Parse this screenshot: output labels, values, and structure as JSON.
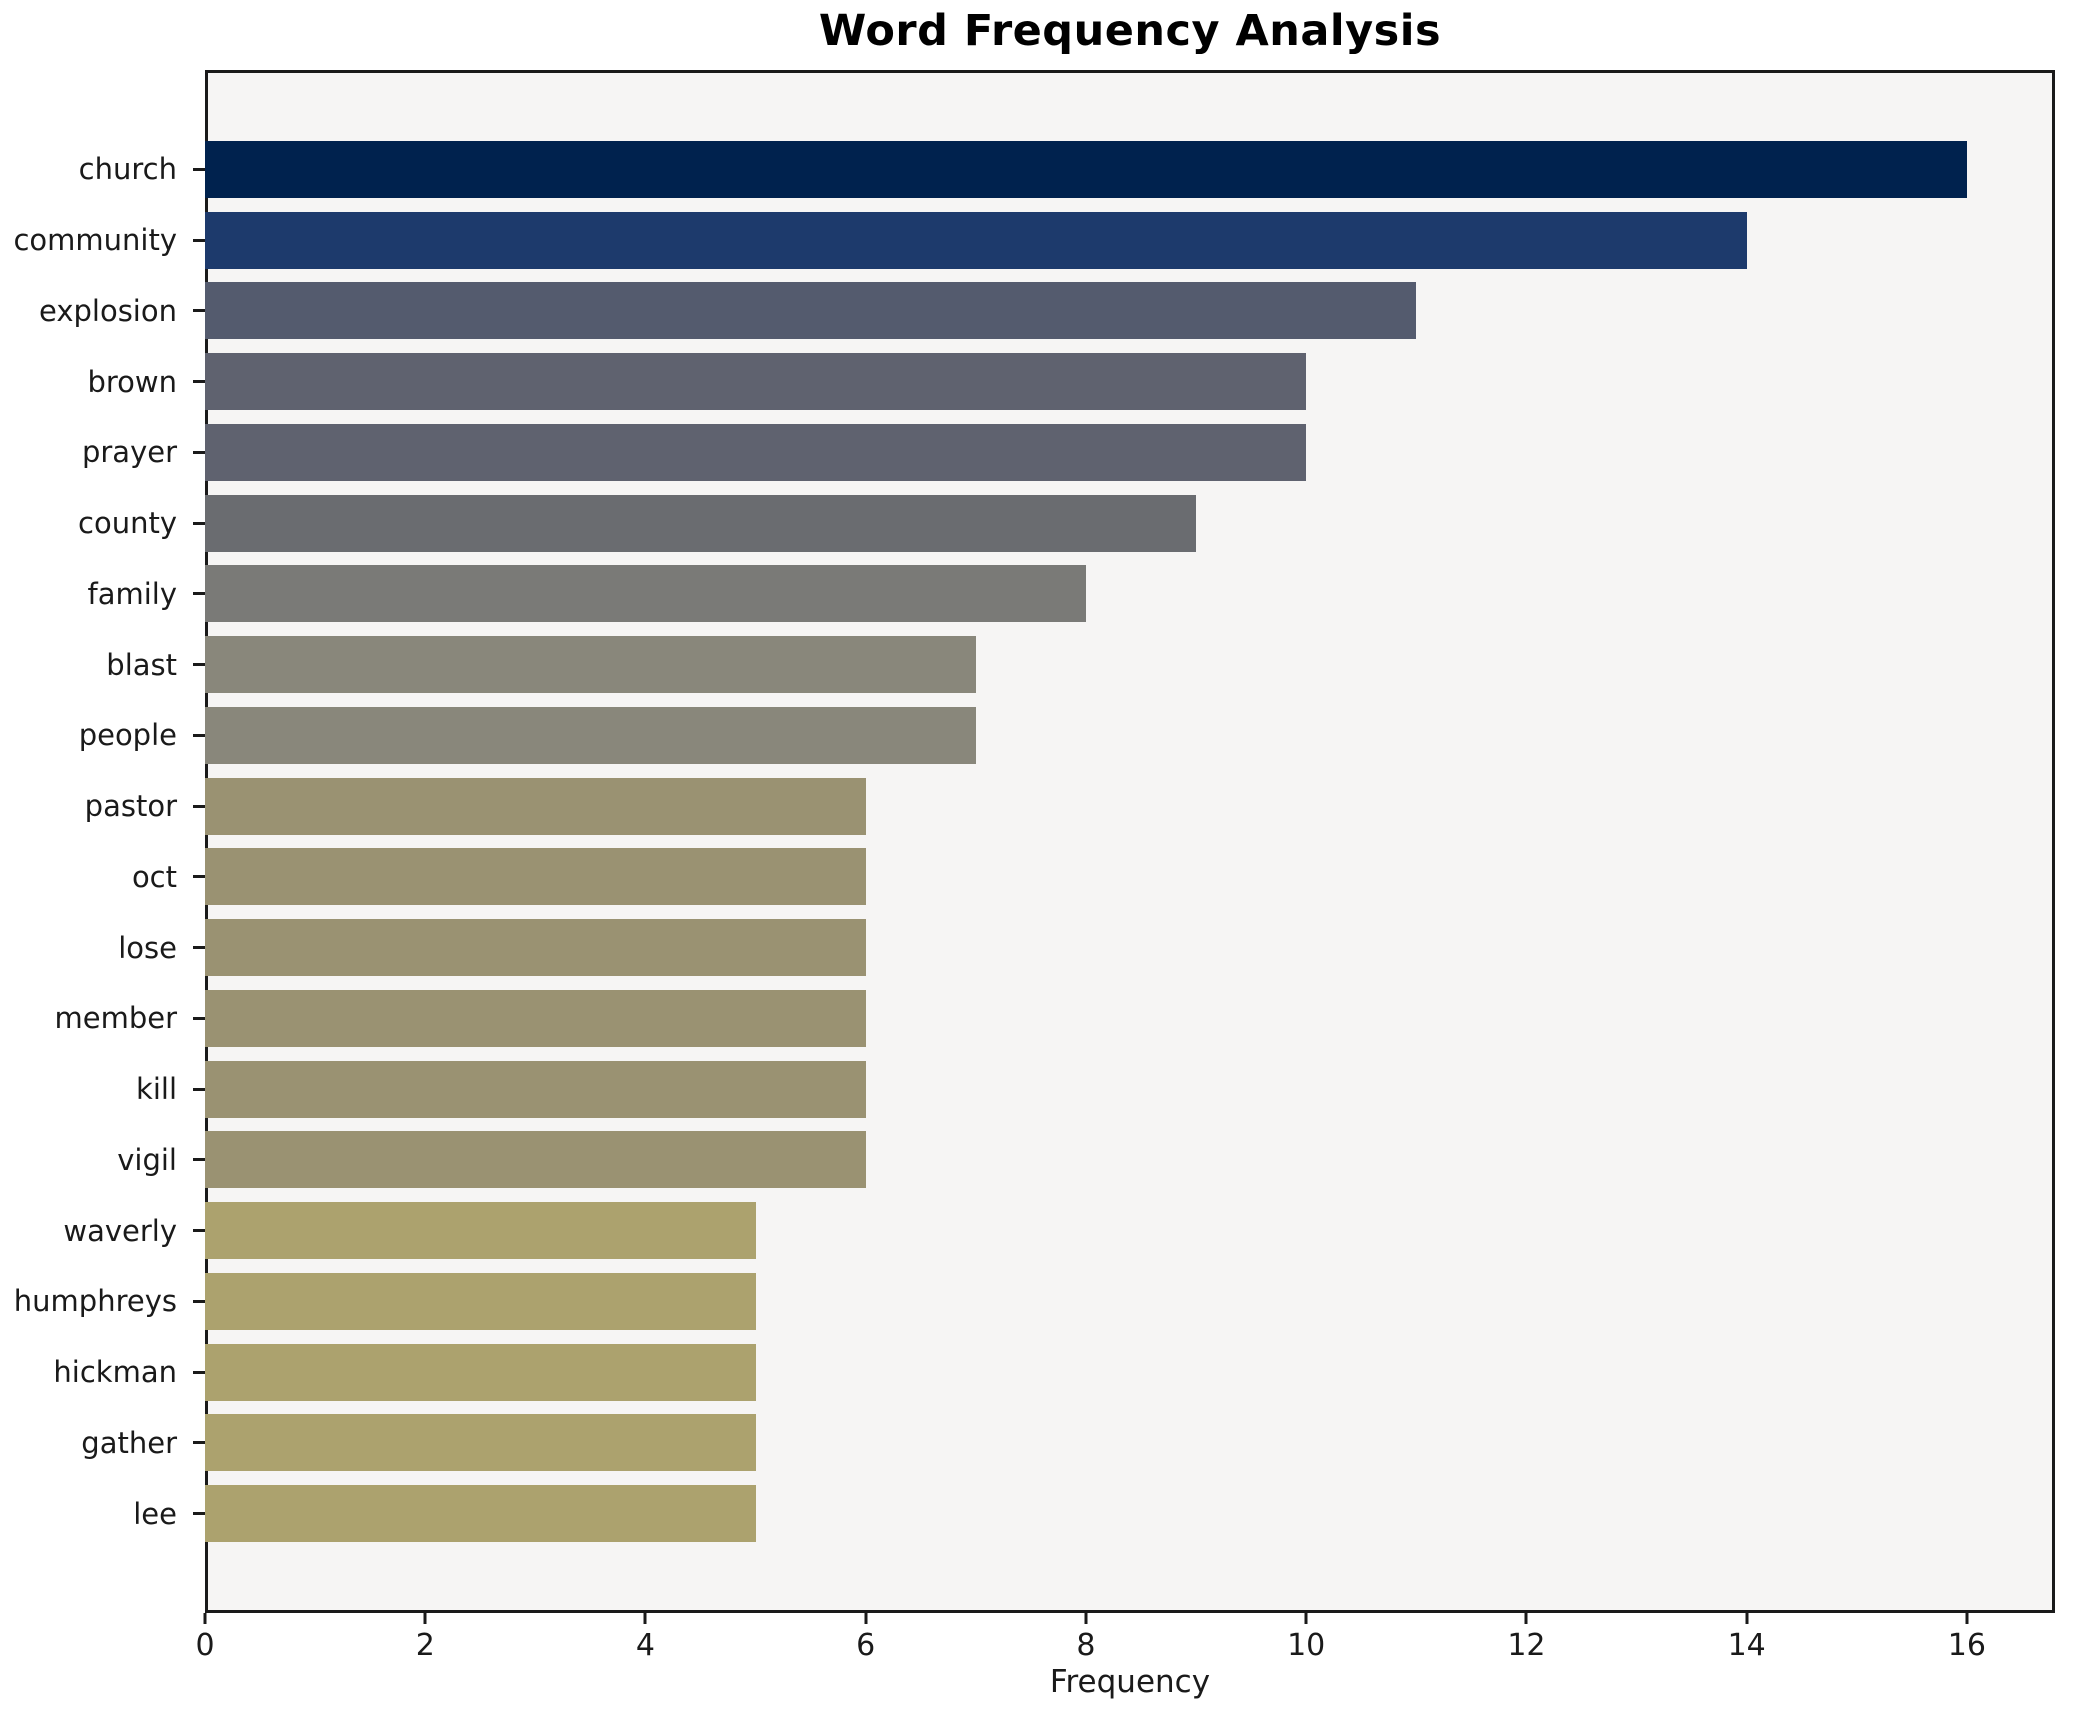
{
  "title": "Word Frequency Analysis",
  "chart_data": {
    "type": "bar",
    "orientation": "horizontal",
    "title": "Word Frequency Analysis",
    "xlabel": "Frequency",
    "ylabel": "",
    "categories": [
      "church",
      "community",
      "explosion",
      "brown",
      "prayer",
      "county",
      "family",
      "blast",
      "people",
      "pastor",
      "oct",
      "lose",
      "member",
      "kill",
      "vigil",
      "waverly",
      "humphreys",
      "hickman",
      "gather",
      "lee"
    ],
    "values": [
      16,
      14,
      11,
      10,
      10,
      9,
      8,
      7,
      7,
      6,
      6,
      6,
      6,
      6,
      6,
      5,
      5,
      5,
      5,
      5
    ],
    "bar_colors": [
      "#00224e",
      "#1d3a6c",
      "#545b6e",
      "#5f626f",
      "#5f626f",
      "#6a6c70",
      "#7a7a77",
      "#89877b",
      "#89877b",
      "#9a9272",
      "#9a9272",
      "#9a9272",
      "#9a9272",
      "#9a9272",
      "#9a9272",
      "#aca26e",
      "#aca26e",
      "#aca26e",
      "#aca26e",
      "#aca26e"
    ],
    "xlim": [
      0,
      16.8
    ],
    "xticks": [
      0,
      2,
      4,
      6,
      8,
      10,
      12,
      14,
      16
    ],
    "grid": false,
    "legend": false,
    "plot_background": "#f6f5f4",
    "figure_background": "#ffffff",
    "spine_color": "#1a1a1a",
    "colormap": "cividis-reversed"
  }
}
